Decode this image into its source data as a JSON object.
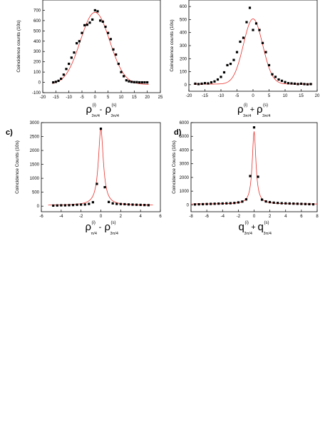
{
  "chart_data": [
    {
      "panel_label": "",
      "type": "scatter",
      "ylabel": "Coincidence counts (10s)",
      "xlabel_main": "ρ",
      "xlabel_sup1": "(i)",
      "xlabel_sub1": "3π/4",
      "xlabel_op": "-",
      "xlabel_sup2": "(s)",
      "xlabel_sub2": "3π/4",
      "xlim": [
        -20,
        25
      ],
      "ylim": [
        -100,
        800
      ],
      "xticks": [
        -20,
        -15,
        -10,
        -5,
        0,
        5,
        10,
        15,
        20,
        25
      ],
      "yticks": [
        -100,
        0,
        100,
        200,
        300,
        400,
        500,
        600,
        700
      ],
      "x": [
        -16,
        -15,
        -14,
        -13,
        -12,
        -11,
        -10,
        -9,
        -8,
        -7,
        -6,
        -5,
        -4,
        -3,
        -2,
        -1,
        0,
        1,
        2,
        3,
        4,
        5,
        6,
        7,
        8,
        9,
        10,
        11,
        12,
        13,
        14,
        15,
        16,
        17,
        18,
        19,
        20
      ],
      "y": [
        0,
        5,
        15,
        35,
        75,
        130,
        180,
        240,
        290,
        380,
        400,
        480,
        555,
        560,
        580,
        610,
        700,
        690,
        600,
        590,
        540,
        480,
        420,
        320,
        270,
        180,
        100,
        60,
        20,
        10,
        5,
        2,
        2,
        0,
        0,
        0,
        0
      ],
      "fit": {
        "type": "gaussian",
        "amplitude": 700,
        "center": 0,
        "sigma": 5.6,
        "offset": -20,
        "color": "#e8302a"
      },
      "marker_color": "#000000"
    },
    {
      "panel_label": "",
      "type": "scatter",
      "ylabel": "Coincidence counts (10s)",
      "xlabel_main": "ρ",
      "xlabel_sup1": "(i)",
      "xlabel_sub1": "3π/4",
      "xlabel_op": "+",
      "xlabel_sup2": "(s)",
      "xlabel_sub2": "3π/4",
      "xlim": [
        -20,
        20
      ],
      "ylim": [
        -50,
        650
      ],
      "xticks": [
        -20,
        -15,
        -10,
        -5,
        0,
        5,
        10,
        15,
        20
      ],
      "yticks": [
        0,
        100,
        200,
        300,
        400,
        500,
        600
      ],
      "x": [
        -18,
        -17,
        -16,
        -15,
        -14,
        -13,
        -12,
        -11,
        -10,
        -9,
        -8,
        -7,
        -6,
        -5,
        -4,
        -3,
        -2,
        -1,
        0,
        1,
        2,
        3,
        4,
        5,
        6,
        7,
        8,
        9,
        10,
        11,
        12,
        13,
        14,
        15,
        16,
        17,
        18
      ],
      "y": [
        8,
        5,
        8,
        12,
        10,
        18,
        25,
        40,
        60,
        95,
        150,
        160,
        190,
        250,
        330,
        360,
        480,
        590,
        420,
        470,
        420,
        320,
        250,
        150,
        80,
        60,
        40,
        30,
        20,
        12,
        10,
        8,
        5,
        8,
        5,
        3,
        5
      ],
      "fit": {
        "type": "gaussian",
        "amplitude": 500,
        "center": 0,
        "sigma": 3.0,
        "offset": 5,
        "color": "#e8302a"
      },
      "marker_color": "#000000"
    },
    {
      "panel_label": "c)",
      "type": "scatter",
      "ylabel": "Coincidence Counts (10s)",
      "xlabel_main": "ρ",
      "xlabel_sup1": "(i)",
      "xlabel_sub1": "π/4",
      "xlabel_op": "-",
      "xlabel_sup2": "(s)",
      "xlabel_sub2": "3π/4",
      "xlim": [
        -6,
        6
      ],
      "ylim": [
        -200,
        3000
      ],
      "xticks": [
        -6,
        -4,
        -2,
        0,
        2,
        4,
        6
      ],
      "yticks": [
        0,
        500,
        1000,
        1500,
        2000,
        2500,
        3000
      ],
      "x": [
        -4.8,
        -4.4,
        -4.0,
        -3.6,
        -3.2,
        -2.8,
        -2.4,
        -2.0,
        -1.6,
        -1.2,
        -0.8,
        -0.4,
        0.0,
        0.4,
        0.8,
        1.2,
        1.6,
        2.0,
        2.4,
        2.8,
        3.2,
        3.6,
        4.0,
        4.4,
        4.8
      ],
      "y": [
        20,
        25,
        30,
        30,
        35,
        40,
        50,
        55,
        60,
        80,
        140,
        800,
        2780,
        680,
        150,
        100,
        80,
        75,
        70,
        60,
        55,
        50,
        45,
        40,
        35
      ],
      "fit": {
        "type": "lorentzian",
        "amplitude": 2750,
        "center": 0,
        "gamma": 0.3,
        "offset": 30,
        "color": "#e8302a"
      },
      "marker_color": "#000000"
    },
    {
      "panel_label": "d)",
      "type": "scatter",
      "ylabel": "Coincidence Counts (10s)",
      "xlabel_main": "q",
      "xlabel_sup1": "(i)",
      "xlabel_sub1": "3π/4",
      "xlabel_op": "+",
      "xlabel_sup2": "(s)",
      "xlabel_sub2": "3π/4",
      "xlim": [
        -8,
        8
      ],
      "ylim": [
        -500,
        6000
      ],
      "xticks": [
        -8,
        -6,
        -4,
        -2,
        0,
        2,
        4,
        6,
        8
      ],
      "yticks": [
        0,
        1000,
        2000,
        3000,
        4000,
        5000,
        6000
      ],
      "x": [
        -7.5,
        -7.0,
        -6.5,
        -6.0,
        -5.5,
        -5.0,
        -4.5,
        -4.0,
        -3.5,
        -3.0,
        -2.5,
        -2.0,
        -1.5,
        -1.0,
        -0.5,
        0.0,
        0.5,
        1.0,
        1.5,
        2.0,
        2.5,
        3.0,
        3.5,
        4.0,
        4.5,
        5.0,
        5.5,
        6.0,
        6.5,
        7.0,
        7.5
      ],
      "y": [
        30,
        40,
        50,
        60,
        70,
        80,
        90,
        100,
        110,
        120,
        140,
        180,
        240,
        400,
        2100,
        5650,
        2050,
        380,
        250,
        200,
        160,
        140,
        120,
        110,
        100,
        90,
        80,
        70,
        60,
        50,
        40
      ],
      "fit": {
        "type": "lorentzian",
        "amplitude": 5300,
        "center": 0,
        "gamma": 0.28,
        "offset": 60,
        "color": "#e8302a"
      },
      "marker_color": "#000000"
    }
  ]
}
